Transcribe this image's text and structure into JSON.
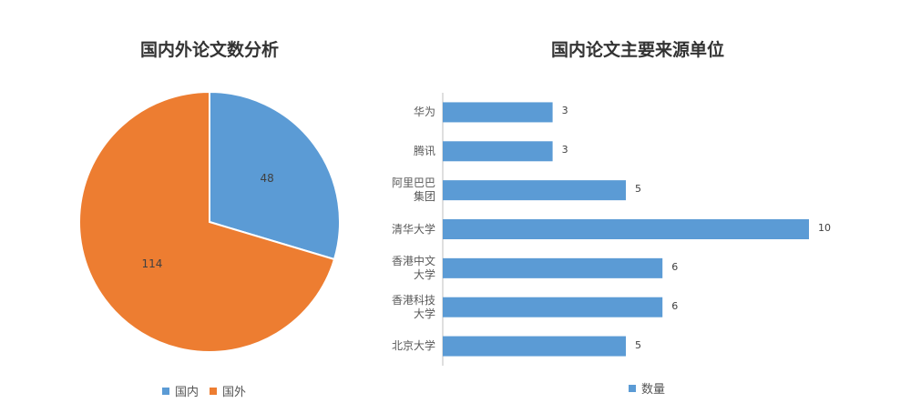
{
  "chart_data": [
    {
      "type": "pie",
      "title": "国内外论文数分析",
      "categories": [
        "国内",
        "国外"
      ],
      "values": [
        48,
        114
      ],
      "colors": [
        "#5b9bd5",
        "#ed7d31"
      ],
      "data_labels": [
        "48",
        "114"
      ],
      "legend": {
        "placement": "bottom",
        "entries": [
          "国内",
          "国外"
        ]
      }
    },
    {
      "type": "bar",
      "orientation": "horizontal",
      "title": "国内论文主要来源单位",
      "categories": [
        [
          "华为"
        ],
        [
          "腾讯"
        ],
        [
          "阿里巴巴",
          "集团"
        ],
        [
          "清华大学"
        ],
        [
          "香港中文",
          "大学"
        ],
        [
          "香港科技",
          "大学"
        ],
        [
          "北京大学"
        ]
      ],
      "series": [
        {
          "name": "数量",
          "values": [
            3,
            3,
            5,
            10,
            6,
            6,
            5
          ],
          "color": "#5b9bd5"
        }
      ],
      "xlim": [
        0,
        10
      ],
      "grid": false,
      "legend": {
        "placement": "bottom",
        "entries": [
          "数量"
        ]
      }
    }
  ]
}
